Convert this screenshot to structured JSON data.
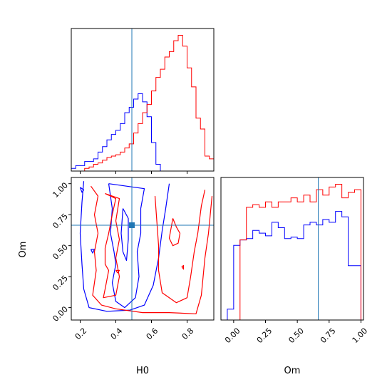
{
  "chart_data": {
    "type": "corner",
    "parameters": [
      "H0",
      "Om"
    ],
    "truths": {
      "H0": 0.49,
      "Om": 0.665
    },
    "series_colors": [
      "#0000ff",
      "#ff0000"
    ],
    "truth_color": "#1f77b4",
    "panels": [
      {
        "id": "hist_H0",
        "type": "step_histogram",
        "xlim": [
          0.15,
          0.95
        ],
        "ylim": [
          0,
          1.05
        ],
        "yticks_shown": false,
        "xticks": [
          0.2,
          0.4,
          0.6,
          0.8
        ],
        "bin_edges": [
          0.15,
          0.175,
          0.2,
          0.225,
          0.25,
          0.275,
          0.3,
          0.325,
          0.35,
          0.375,
          0.4,
          0.425,
          0.45,
          0.475,
          0.5,
          0.525,
          0.55,
          0.575,
          0.6,
          0.625,
          0.65,
          0.675,
          0.7,
          0.725,
          0.75,
          0.775,
          0.8,
          0.825,
          0.85,
          0.875,
          0.9,
          0.925,
          0.95
        ],
        "series": [
          {
            "color": "#0000ff",
            "values": [
              0.02,
              0.04,
              0.04,
              0.07,
              0.07,
              0.09,
              0.14,
              0.18,
              0.23,
              0.27,
              0.3,
              0.35,
              0.43,
              0.47,
              0.53,
              0.57,
              0.51,
              0.4,
              0.21,
              0.05,
              0,
              0,
              0,
              0,
              0,
              0,
              0,
              0,
              0,
              0,
              0,
              0
            ]
          },
          {
            "color": "#ff0000",
            "values": [
              0,
              0,
              0,
              0.02,
              0.03,
              0.05,
              0.06,
              0.08,
              0.1,
              0.11,
              0.12,
              0.14,
              0.17,
              0.2,
              0.28,
              0.35,
              0.43,
              0.49,
              0.59,
              0.69,
              0.75,
              0.84,
              0.88,
              0.96,
              1.0,
              0.92,
              0.76,
              0.62,
              0.39,
              0.31,
              0.11,
              0.09
            ]
          }
        ]
      },
      {
        "id": "contour_H0_Om",
        "type": "contour",
        "xlim": [
          0.15,
          0.95
        ],
        "ylim": [
          -0.1,
          1.05
        ],
        "xticks": [
          0.2,
          0.4,
          0.6,
          0.8
        ],
        "yticks": [
          0.0,
          0.25,
          0.5,
          0.75,
          1.0
        ],
        "xlabel": "H0",
        "ylabel": "Om",
        "series": [
          {
            "color": "#0000ff",
            "contours": [
              [
                [
                  0.22,
                  1.02
                ],
                [
                  0.21,
                  0.85
                ],
                [
                  0.2,
                  0.6
                ],
                [
                  0.21,
                  0.35
                ],
                [
                  0.22,
                  0.15
                ],
                [
                  0.25,
                  0.0
                ],
                [
                  0.35,
                  -0.03
                ],
                [
                  0.48,
                  -0.02
                ],
                [
                  0.56,
                  0.02
                ],
                [
                  0.61,
                  0.18
                ],
                [
                  0.64,
                  0.4
                ],
                [
                  0.66,
                  0.62
                ],
                [
                  0.68,
                  0.8
                ],
                [
                  0.7,
                  1.0
                ]
              ],
              [
                [
                  0.36,
                  1.0
                ],
                [
                  0.38,
                  0.8
                ],
                [
                  0.37,
                  0.6
                ],
                [
                  0.39,
                  0.45
                ],
                [
                  0.4,
                  0.35
                ],
                [
                  0.38,
                  0.2
                ],
                [
                  0.4,
                  0.05
                ],
                [
                  0.45,
                  0.0
                ],
                [
                  0.51,
                  0.08
                ],
                [
                  0.53,
                  0.25
                ],
                [
                  0.52,
                  0.45
                ],
                [
                  0.54,
                  0.6
                ],
                [
                  0.54,
                  0.8
                ],
                [
                  0.56,
                  0.96
                ],
                [
                  0.46,
                  0.98
                ],
                [
                  0.36,
                  1.0
                ]
              ],
              [
                [
                  0.44,
                  0.8
                ],
                [
                  0.43,
                  0.6
                ],
                [
                  0.44,
                  0.45
                ],
                [
                  0.46,
                  0.38
                ],
                [
                  0.47,
                  0.55
                ],
                [
                  0.47,
                  0.72
                ],
                [
                  0.44,
                  0.8
                ]
              ],
              [
                [
                  0.2,
                  0.97
                ],
                [
                  0.21,
                  0.93
                ],
                [
                  0.22,
                  0.95
                ],
                [
                  0.2,
                  0.97
                ]
              ],
              [
                [
                  0.26,
                  0.47
                ],
                [
                  0.27,
                  0.44
                ],
                [
                  0.28,
                  0.47
                ],
                [
                  0.26,
                  0.47
                ]
              ]
            ]
          },
          {
            "color": "#ff0000",
            "contours": [
              [
                [
                  0.26,
                  0.98
                ],
                [
                  0.3,
                  0.9
                ],
                [
                  0.28,
                  0.75
                ],
                [
                  0.3,
                  0.6
                ],
                [
                  0.28,
                  0.45
                ],
                [
                  0.29,
                  0.3
                ],
                [
                  0.27,
                  0.1
                ],
                [
                  0.32,
                  0.02
                ],
                [
                  0.4,
                  -0.01
                ],
                [
                  0.55,
                  -0.04
                ],
                [
                  0.7,
                  -0.04
                ],
                [
                  0.85,
                  -0.05
                ],
                [
                  0.88,
                  0.1
                ],
                [
                  0.9,
                  0.4
                ],
                [
                  0.92,
                  0.6
                ],
                [
                  0.94,
                  0.9
                ]
              ],
              [
                [
                  0.34,
                  0.92
                ],
                [
                  0.4,
                  0.88
                ],
                [
                  0.38,
                  0.75
                ],
                [
                  0.36,
                  0.6
                ],
                [
                  0.34,
                  0.48
                ],
                [
                  0.34,
                  0.35
                ],
                [
                  0.36,
                  0.3
                ],
                [
                  0.34,
                  0.15
                ],
                [
                  0.33,
                  0.08
                ],
                [
                  0.4,
                  0.1
                ],
                [
                  0.42,
                  0.25
                ],
                [
                  0.4,
                  0.4
                ],
                [
                  0.42,
                  0.55
                ],
                [
                  0.4,
                  0.7
                ],
                [
                  0.42,
                  0.88
                ],
                [
                  0.34,
                  0.92
                ]
              ],
              [
                [
                  0.62,
                  0.9
                ],
                [
                  0.63,
                  0.7
                ],
                [
                  0.64,
                  0.5
                ],
                [
                  0.64,
                  0.3
                ],
                [
                  0.66,
                  0.12
                ],
                [
                  0.74,
                  0.04
                ],
                [
                  0.8,
                  0.08
                ],
                [
                  0.82,
                  0.25
                ],
                [
                  0.84,
                  0.45
                ],
                [
                  0.86,
                  0.6
                ],
                [
                  0.88,
                  0.82
                ],
                [
                  0.9,
                  0.95
                ]
              ],
              [
                [
                  0.72,
                  0.72
                ],
                [
                  0.74,
                  0.65
                ],
                [
                  0.76,
                  0.6
                ],
                [
                  0.75,
                  0.52
                ],
                [
                  0.72,
                  0.5
                ],
                [
                  0.7,
                  0.56
                ],
                [
                  0.72,
                  0.72
                ]
              ],
              [
                [
                  0.77,
                  0.33
                ],
                [
                  0.78,
                  0.31
                ],
                [
                  0.78,
                  0.34
                ],
                [
                  0.77,
                  0.33
                ]
              ],
              [
                [
                  0.4,
                  0.3
                ],
                [
                  0.41,
                  0.28
                ],
                [
                  0.42,
                  0.3
                ],
                [
                  0.4,
                  0.3
                ]
              ]
            ]
          }
        ]
      },
      {
        "id": "hist_Om",
        "type": "step_histogram",
        "xlim": [
          -0.1,
          1.02
        ],
        "ylim": [
          0,
          1.05
        ],
        "yticks_shown": false,
        "xticks": [
          0.0,
          0.25,
          0.5,
          0.75,
          1.0
        ],
        "xlabel": "Om",
        "bin_edges": [
          -0.05,
          0.0,
          0.05,
          0.1,
          0.15,
          0.2,
          0.25,
          0.3,
          0.35,
          0.4,
          0.45,
          0.5,
          0.55,
          0.6,
          0.65,
          0.7,
          0.75,
          0.8,
          0.85,
          0.9,
          0.95,
          1.0
        ],
        "series": [
          {
            "color": "#0000ff",
            "values": [
              0.08,
              0.55,
              0.59,
              0.6,
              0.66,
              0.64,
              0.62,
              0.72,
              0.68,
              0.6,
              0.61,
              0.6,
              0.7,
              0.72,
              0.7,
              0.74,
              0.72,
              0.8,
              0.76,
              0.4,
              0.4
            ]
          },
          {
            "color": "#ff0000",
            "values": [
              0,
              0,
              0.59,
              0.83,
              0.85,
              0.83,
              0.87,
              0.83,
              0.87,
              0.87,
              0.9,
              0.87,
              0.92,
              0.87,
              0.96,
              0.92,
              0.98,
              1.0,
              0.9,
              0.94,
              0.96
            ]
          }
        ]
      }
    ]
  }
}
